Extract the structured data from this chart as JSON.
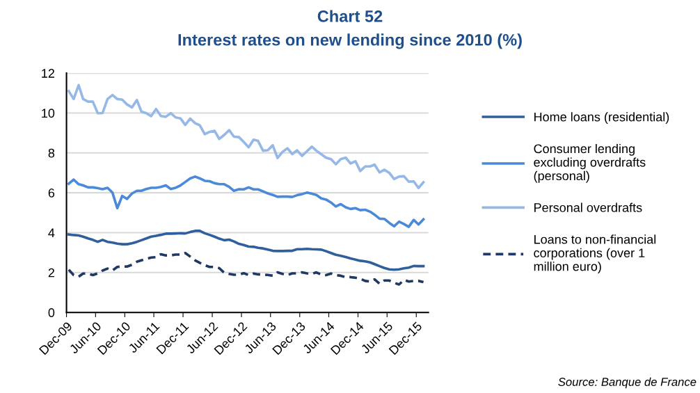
{
  "chart_data": {
    "type": "line",
    "title": "Chart 52",
    "subtitle": "Interest rates on new lending since 2010 (%)",
    "x": [
      "2009-12-15",
      "2010-01-15",
      "2010-02-15",
      "2010-03-15",
      "2010-04-15",
      "2010-05-15",
      "2010-06-15",
      "2010-07-15",
      "2010-08-15",
      "2010-09-15",
      "2010-10-15",
      "2010-11-15",
      "2010-12-15",
      "2011-01-15",
      "2011-02-15",
      "2011-03-15",
      "2011-04-15",
      "2011-05-15",
      "2011-06-15",
      "2011-07-15",
      "2011-08-15",
      "2011-09-15",
      "2011-10-15",
      "2011-11-15",
      "2011-12-15",
      "2012-01-15",
      "2012-02-15",
      "2012-03-15",
      "2012-04-15",
      "2012-05-15",
      "2012-06-15",
      "2012-07-15",
      "2012-08-15",
      "2012-09-15",
      "2012-10-15",
      "2012-11-15",
      "2012-12-15",
      "2013-01-15",
      "2013-02-15",
      "2013-03-15",
      "2013-04-15",
      "2013-05-15",
      "2013-06-15",
      "2013-07-15",
      "2013-08-15",
      "2013-09-15",
      "2013-10-15",
      "2013-11-15",
      "2013-12-15",
      "2014-01-15",
      "2014-02-15",
      "2014-03-15",
      "2014-04-15",
      "2014-05-15",
      "2014-06-15",
      "2014-07-15",
      "2014-08-15",
      "2014-09-15",
      "2014-10-15",
      "2014-11-15",
      "2014-12-15",
      "2015-01-15",
      "2015-02-15",
      "2015-03-15",
      "2015-04-15",
      "2015-05-15",
      "2015-06-15",
      "2015-07-15",
      "2015-08-15",
      "2015-09-15",
      "2015-10-15",
      "2015-11-15",
      "2015-12-15",
      "2016-01-15"
    ],
    "series": [
      {
        "name": "Home loans (residential)",
        "color": "#2f5f9c",
        "line_style": "solid",
        "values": [
          3.91,
          3.88,
          3.86,
          3.8,
          3.71,
          3.64,
          3.54,
          3.64,
          3.54,
          3.5,
          3.45,
          3.42,
          3.42,
          3.47,
          3.54,
          3.62,
          3.71,
          3.8,
          3.84,
          3.89,
          3.95,
          3.95,
          3.96,
          3.97,
          3.96,
          4.03,
          4.09,
          4.09,
          3.97,
          3.89,
          3.8,
          3.7,
          3.62,
          3.65,
          3.56,
          3.44,
          3.38,
          3.3,
          3.29,
          3.24,
          3.21,
          3.15,
          3.09,
          3.08,
          3.08,
          3.09,
          3.09,
          3.17,
          3.17,
          3.19,
          3.17,
          3.16,
          3.15,
          3.07,
          2.98,
          2.89,
          2.84,
          2.78,
          2.71,
          2.65,
          2.59,
          2.56,
          2.51,
          2.42,
          2.32,
          2.23,
          2.16,
          2.14,
          2.16,
          2.21,
          2.25,
          2.33,
          2.32,
          2.32
        ]
      },
      {
        "name": "Consumer lending\nexcluding overdrafts\n(personal)",
        "color": "#4a8ad8",
        "line_style": "solid",
        "values": [
          6.45,
          6.66,
          6.43,
          6.37,
          6.27,
          6.27,
          6.23,
          6.18,
          6.25,
          6.01,
          5.23,
          5.84,
          5.69,
          5.96,
          6.1,
          6.1,
          6.19,
          6.25,
          6.25,
          6.29,
          6.37,
          6.19,
          6.25,
          6.37,
          6.54,
          6.72,
          6.81,
          6.72,
          6.6,
          6.58,
          6.48,
          6.43,
          6.43,
          6.3,
          6.1,
          6.18,
          6.17,
          6.27,
          6.17,
          6.17,
          6.07,
          5.97,
          5.89,
          5.8,
          5.81,
          5.81,
          5.79,
          5.88,
          5.93,
          6.01,
          5.95,
          5.89,
          5.72,
          5.66,
          5.51,
          5.31,
          5.43,
          5.27,
          5.19,
          5.23,
          5.13,
          5.15,
          5.05,
          4.9,
          4.7,
          4.69,
          4.49,
          4.32,
          4.55,
          4.43,
          4.29,
          4.64,
          4.41,
          4.67
        ]
      },
      {
        "name": "Personal overdrafts",
        "color": "#95b8e6",
        "line_style": "solid",
        "values": [
          11.1,
          10.7,
          11.4,
          10.7,
          10.57,
          10.57,
          9.99,
          10.0,
          10.7,
          10.9,
          10.7,
          10.67,
          10.43,
          10.28,
          10.65,
          10.07,
          9.99,
          9.84,
          10.2,
          9.85,
          9.81,
          9.99,
          9.78,
          9.73,
          9.4,
          9.72,
          9.49,
          9.38,
          8.94,
          9.05,
          9.11,
          8.7,
          8.9,
          9.14,
          8.81,
          8.79,
          8.55,
          8.28,
          8.66,
          8.6,
          8.11,
          8.13,
          8.38,
          7.74,
          8.05,
          8.23,
          7.94,
          8.13,
          7.85,
          8.08,
          8.31,
          8.11,
          7.93,
          7.76,
          7.69,
          7.43,
          7.69,
          7.76,
          7.47,
          7.58,
          7.09,
          7.32,
          7.32,
          7.41,
          7.02,
          7.15,
          7.0,
          6.69,
          6.81,
          6.83,
          6.56,
          6.57,
          6.24,
          6.53
        ]
      },
      {
        "name": "Loans to non-financial\ncorporations (over 1\nmillion euro)",
        "color": "#1f3864",
        "line_style": "dashed",
        "values": [
          2.14,
          1.87,
          1.79,
          1.95,
          1.95,
          1.87,
          1.96,
          2.1,
          2.2,
          2.1,
          2.28,
          2.31,
          2.3,
          2.39,
          2.54,
          2.61,
          2.69,
          2.75,
          2.77,
          2.92,
          2.86,
          2.86,
          2.9,
          2.9,
          2.98,
          2.8,
          2.61,
          2.49,
          2.37,
          2.28,
          2.28,
          2.22,
          1.99,
          1.93,
          1.89,
          1.89,
          1.97,
          1.87,
          1.95,
          1.91,
          1.89,
          1.88,
          1.84,
          2.01,
          1.93,
          1.87,
          1.96,
          1.96,
          2.01,
          1.96,
          1.93,
          2.01,
          1.89,
          1.87,
          1.95,
          1.87,
          1.84,
          1.77,
          1.77,
          1.74,
          1.69,
          1.58,
          1.55,
          1.66,
          1.44,
          1.6,
          1.6,
          1.49,
          1.4,
          1.63,
          1.55,
          1.58,
          1.58,
          1.52
        ]
      }
    ],
    "xlim": [
      "2009-12-01",
      "2016-02-15"
    ],
    "xticks": [
      {
        "value": "2009-12-01",
        "label": "Dec-09"
      },
      {
        "value": "2010-06-01",
        "label": "Jun-10"
      },
      {
        "value": "2010-12-01",
        "label": "Dec-10"
      },
      {
        "value": "2011-06-01",
        "label": "Jun-11"
      },
      {
        "value": "2011-12-01",
        "label": "Dec-11"
      },
      {
        "value": "2012-06-01",
        "label": "Jun-12"
      },
      {
        "value": "2012-12-01",
        "label": "Dec-12"
      },
      {
        "value": "2013-06-01",
        "label": "Jun-13"
      },
      {
        "value": "2013-12-01",
        "label": "Dec-13"
      },
      {
        "value": "2014-06-01",
        "label": "Jun-14"
      },
      {
        "value": "2014-12-01",
        "label": "Dec-14"
      },
      {
        "value": "2015-06-01",
        "label": "Jun-15"
      },
      {
        "value": "2015-12-01",
        "label": "Dec-15"
      }
    ],
    "ylim": [
      0,
      12
    ],
    "yticks": [
      0,
      2,
      4,
      6,
      8,
      10,
      12
    ],
    "grid": "y",
    "legend": "right",
    "annotations": [
      "Source: Banque de France"
    ]
  }
}
